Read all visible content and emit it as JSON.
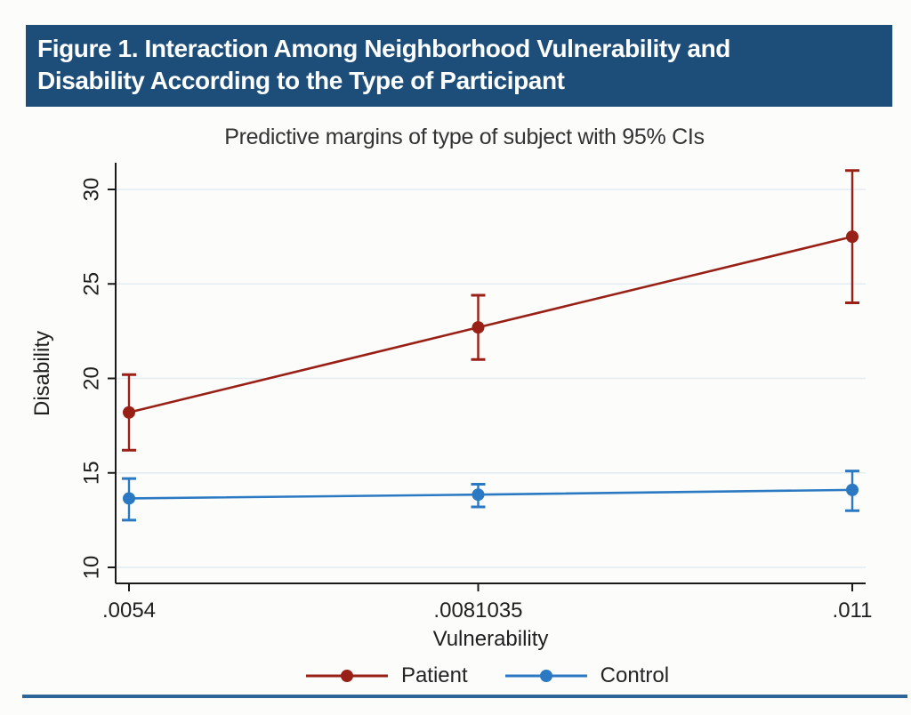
{
  "header": {
    "title_line1": "Figure 1. Interaction Among Neighborhood Vulnerability and",
    "title_line2": "Disability According to the Type of Participant",
    "bg_color": "#1d4e79"
  },
  "chart_data": {
    "type": "line",
    "title": "Predictive margins of type of subject with 95% CIs",
    "xlabel": "Vulnerability",
    "ylabel": "Disability",
    "x": [
      0.0054,
      0.0081035,
      0.011
    ],
    "x_tick_labels": [
      ".0054",
      ".0081035",
      ".011"
    ],
    "y_ticks": [
      10,
      15,
      20,
      25,
      30
    ],
    "ylim": [
      9.2,
      31.4
    ],
    "grid": true,
    "grid_color": "#e2ecf3",
    "legend_position": "bottom",
    "series": [
      {
        "name": "Patient",
        "color": "#992017",
        "values": [
          18.2,
          22.7,
          27.5
        ],
        "ci_low": [
          16.2,
          21.0,
          24.0
        ],
        "ci_high": [
          20.2,
          24.4,
          31.0
        ]
      },
      {
        "name": "Control",
        "color": "#2b79c2",
        "values": [
          13.65,
          13.85,
          14.1
        ],
        "ci_low": [
          12.5,
          13.2,
          13.0
        ],
        "ci_high": [
          14.7,
          14.4,
          15.1
        ]
      }
    ]
  },
  "footer": {
    "rule_color": "#2c6699"
  }
}
